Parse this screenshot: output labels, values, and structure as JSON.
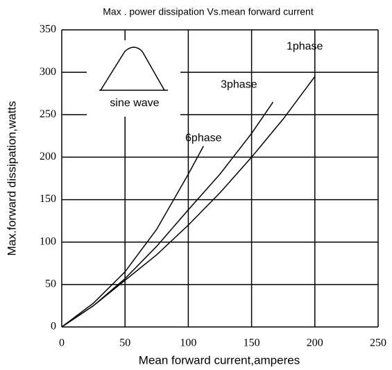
{
  "chart_data": {
    "type": "line",
    "title": "Max . power dissipation Vs.mean forward current",
    "x_label": "Mean forward current,amperes",
    "y_label": "Max.forward dissipation,watts",
    "inset_label": "sine wave",
    "series": [
      {
        "name": "1phase",
        "color": "#000000",
        "x": [
          0,
          25,
          50,
          75,
          100,
          125,
          150,
          175,
          200
        ],
        "values": [
          0,
          25,
          55,
          85,
          120,
          158,
          200,
          245,
          295
        ]
      },
      {
        "name": "3phase",
        "color": "#000000",
        "x": [
          0,
          25,
          50,
          75,
          100,
          125,
          150,
          167
        ],
        "values": [
          0,
          25,
          57,
          95,
          138,
          180,
          228,
          265
        ]
      },
      {
        "name": "6phase",
        "color": "#000000",
        "x": [
          0,
          25,
          50,
          75,
          100,
          112
        ],
        "values": [
          0,
          28,
          65,
          115,
          180,
          213
        ]
      }
    ],
    "xlim": [
      0,
      250
    ],
    "xticks": [
      0,
      50,
      100,
      150,
      200,
      250
    ],
    "ylim": [
      0,
      350
    ],
    "yticks": [
      0,
      50,
      100,
      150,
      200,
      250,
      300,
      350
    ],
    "grid": true
  }
}
